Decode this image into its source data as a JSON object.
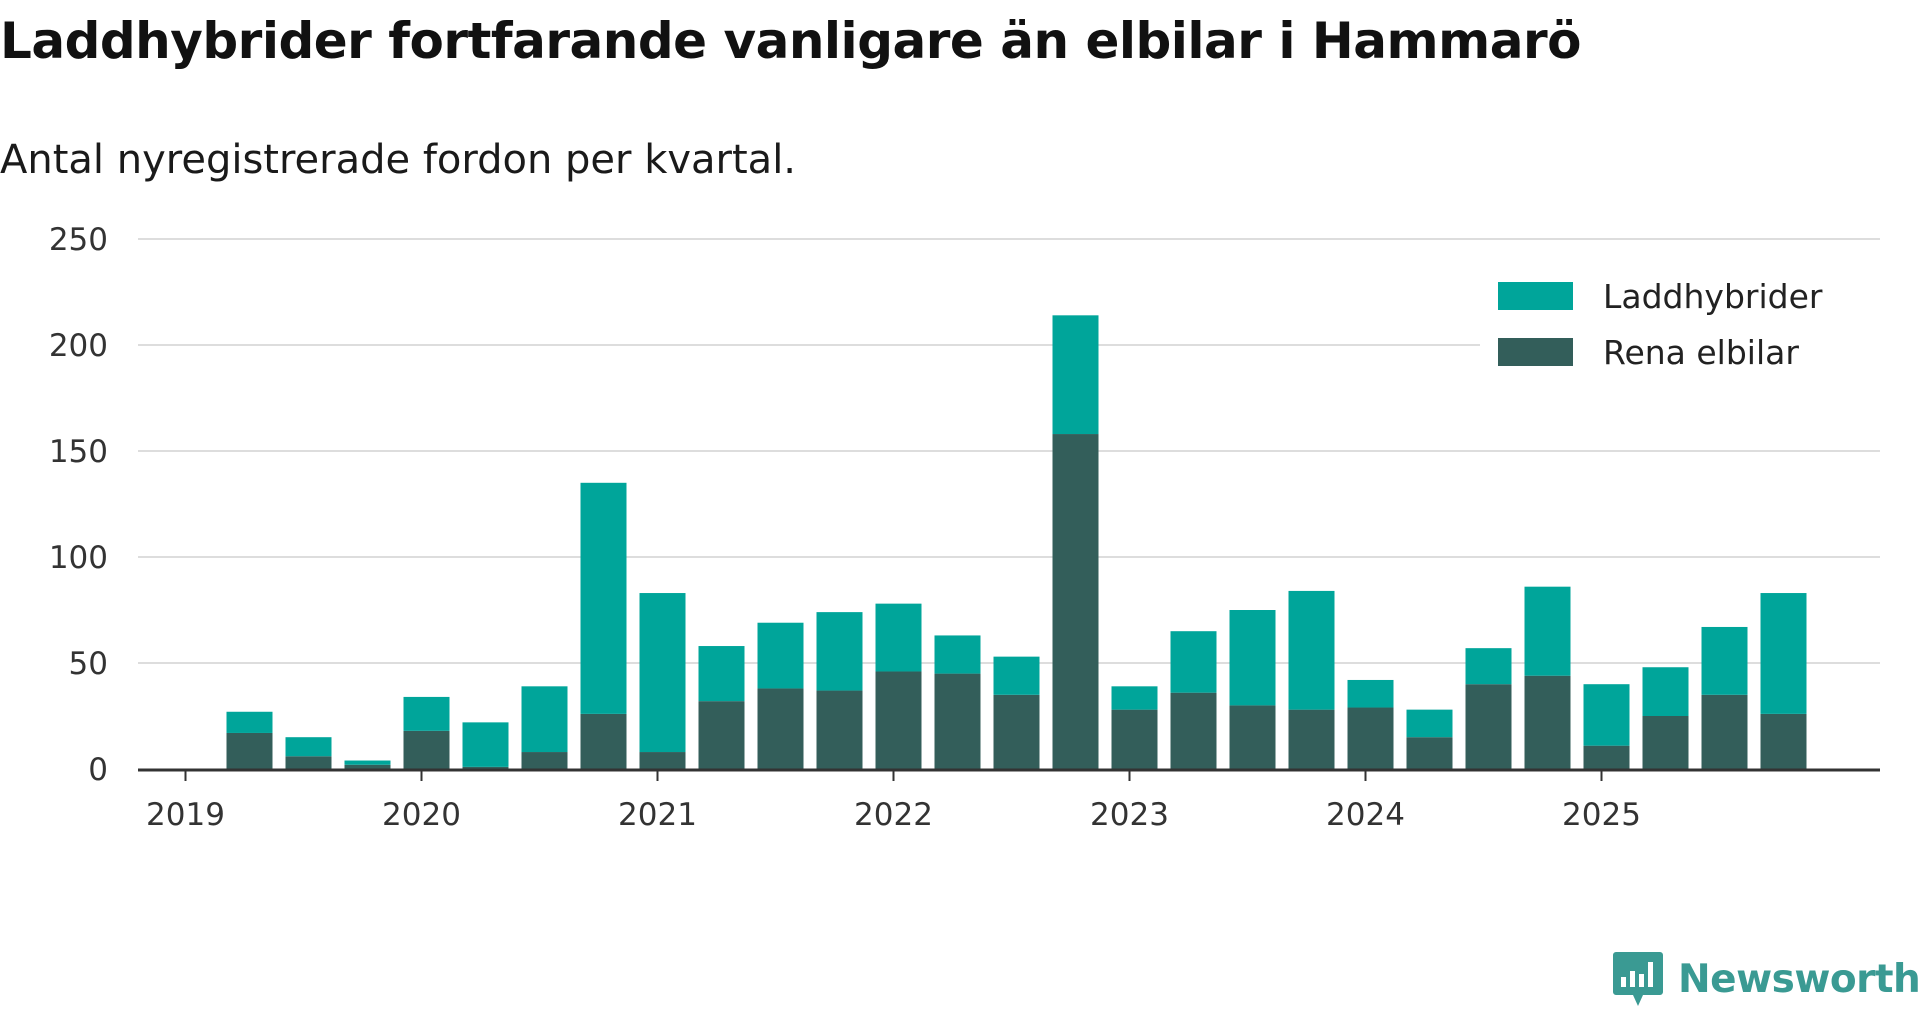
{
  "title": "Laddhybrider fortfarande vanligare än elbilar i Hammarö",
  "subtitle": "Antal nyregistrerade fordon per kvartal.",
  "brand": {
    "name": "Newsworthy",
    "logo_icon": "newsworthy-chart-logo-icon",
    "color": "#3a9a93"
  },
  "colors": {
    "laddhybrider": "#00a59a",
    "rena_elbilar": "#335e5a",
    "gridline": "#dddddd",
    "axis": "#333333"
  },
  "chart_data": {
    "type": "bar",
    "stacked": true,
    "title": "Laddhybrider fortfarande vanligare än elbilar i Hammarö",
    "subtitle": "Antal nyregistrerade fordon per kvartal.",
    "xlabel": "",
    "ylabel": "",
    "ylim": [
      0,
      250
    ],
    "yticks": [
      "0",
      "50",
      "100",
      "150",
      "200",
      "250"
    ],
    "xticks": [
      "2019",
      "2020",
      "2021",
      "2022",
      "2023",
      "2024",
      "2025"
    ],
    "grid": true,
    "legend_position": "top-right",
    "categories": [
      "2019 Q1",
      "2019 Q2",
      "2019 Q3",
      "2019 Q4",
      "2020 Q1",
      "2020 Q2",
      "2020 Q3",
      "2020 Q4",
      "2021 Q1",
      "2021 Q2",
      "2021 Q3",
      "2021 Q4",
      "2022 Q1",
      "2022 Q2",
      "2022 Q3",
      "2022 Q4",
      "2023 Q1",
      "2023 Q2",
      "2023 Q3",
      "2023 Q4",
      "2024 Q1",
      "2024 Q2",
      "2024 Q3",
      "2024 Q4",
      "2025 Q1",
      "2025 Q2",
      "2025 Q3",
      "2025 Q4"
    ],
    "series": [
      {
        "name": "Rena elbilar",
        "values": [
          0,
          17,
          6,
          2,
          18,
          1,
          8,
          26,
          8,
          32,
          38,
          37,
          46,
          45,
          35,
          158,
          28,
          36,
          30,
          28,
          29,
          15,
          40,
          44,
          11,
          25,
          35,
          26
        ]
      },
      {
        "name": "Laddhybrider",
        "values": [
          0,
          10,
          9,
          2,
          16,
          21,
          31,
          109,
          75,
          26,
          31,
          37,
          32,
          18,
          18,
          56,
          11,
          29,
          45,
          56,
          13,
          13,
          17,
          42,
          29,
          23,
          32,
          57
        ]
      }
    ]
  }
}
